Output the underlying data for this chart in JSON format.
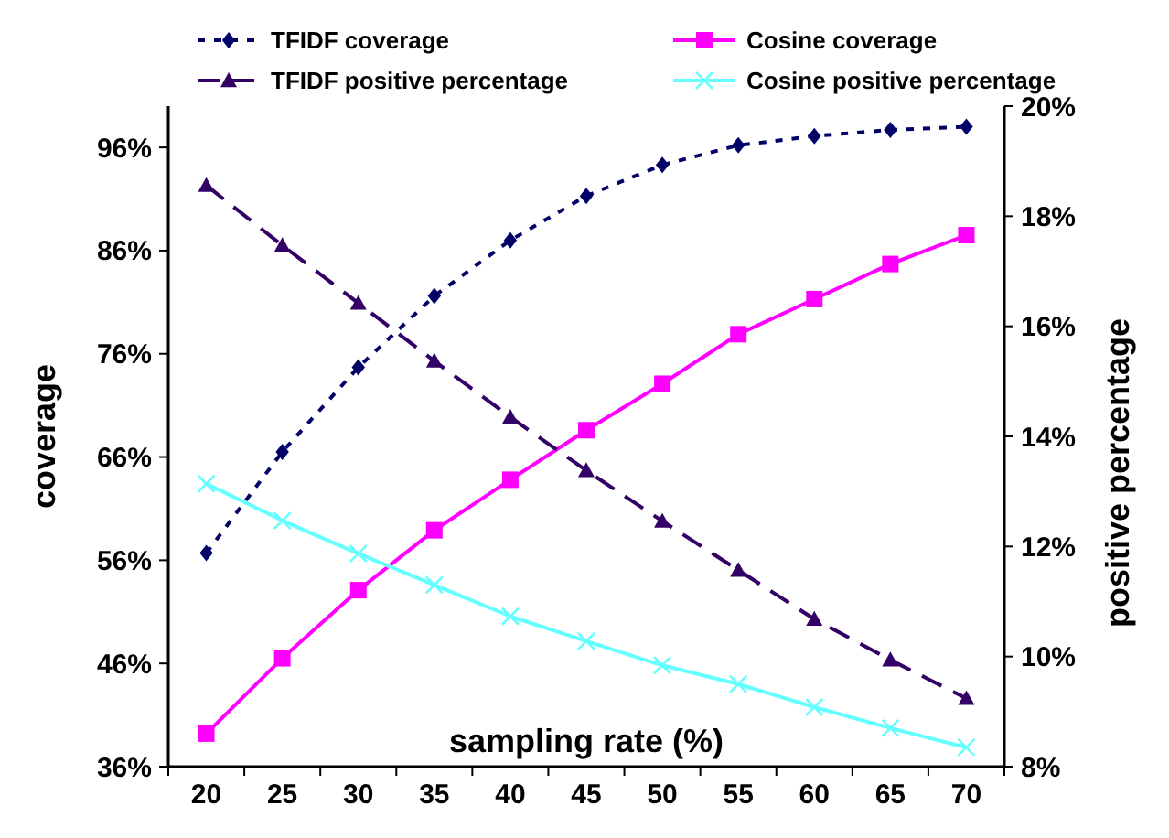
{
  "chart_data": {
    "type": "line",
    "xlabel": "sampling rate (%)",
    "ylabel": "coverage",
    "y2label": "positive percentage",
    "categories": [
      "20",
      "25",
      "30",
      "35",
      "40",
      "45",
      "50",
      "55",
      "60",
      "65",
      "70"
    ],
    "series": [
      {
        "name": "TFIDF coverage",
        "color": "#000066",
        "marker": "diamond",
        "line_style": "dotted",
        "values": [
          56.7,
          66.5,
          74.7,
          81.6,
          87.0,
          91.3,
          94.3,
          96.2,
          97.1,
          97.7,
          98.0
        ]
      },
      {
        "name": "Cosine coverage",
        "color": "#ff00ff",
        "marker": "square",
        "line_style": "solid",
        "values": [
          39.2,
          46.5,
          53.1,
          58.9,
          63.8,
          68.6,
          73.1,
          77.9,
          81.3,
          84.7,
          87.5
        ]
      },
      {
        "name": "TFIDF positive percentage",
        "color": "#330066",
        "marker": "triangle",
        "line_style": "dashed",
        "axis": "y2",
        "values": [
          18.56,
          17.47,
          16.42,
          15.37,
          14.35,
          13.38,
          12.46,
          11.57,
          10.68,
          9.94,
          9.24
        ]
      },
      {
        "name": "Cosine positive percentage",
        "color": "#66ffff",
        "marker": "cross",
        "line_style": "solid",
        "axis": "y2",
        "values": [
          13.14,
          12.47,
          11.87,
          11.3,
          10.73,
          10.28,
          9.84,
          9.5,
          9.08,
          8.7,
          8.35
        ]
      }
    ],
    "ylim": [
      36,
      100
    ],
    "yticks": [
      {
        "value": 36,
        "label": "36%"
      },
      {
        "value": 46,
        "label": "46%"
      },
      {
        "value": 56,
        "label": "56%"
      },
      {
        "value": 66,
        "label": "66%"
      },
      {
        "value": 76,
        "label": "76%"
      },
      {
        "value": 86,
        "label": "86%"
      },
      {
        "value": 96,
        "label": "96%"
      }
    ],
    "y2lim": [
      8,
      20
    ],
    "y2ticks": [
      {
        "value": 8,
        "label": "8%"
      },
      {
        "value": 10,
        "label": "10%"
      },
      {
        "value": 12,
        "label": "12%"
      },
      {
        "value": 14,
        "label": "14%"
      },
      {
        "value": 16,
        "label": "16%"
      },
      {
        "value": 18,
        "label": "18%"
      },
      {
        "value": 20,
        "label": "20%"
      }
    ],
    "legend": "top",
    "grid": false
  }
}
